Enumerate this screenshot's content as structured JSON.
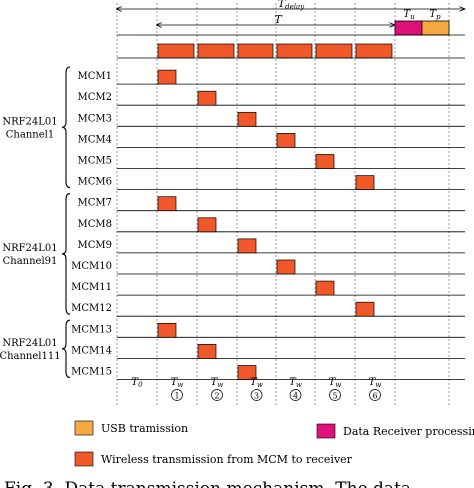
{
  "header": {
    "t_delay": "T_delay",
    "t_delay_main": "T",
    "t_delay_sub": "delay",
    "t_period": "T",
    "t_u_main": "T",
    "t_u_sub": "u",
    "t_p_main": "T",
    "t_p_sub": "p"
  },
  "groups": [
    {
      "line1": "NRF24L01",
      "line2": "Channel1",
      "rows": [
        {
          "label": "MCM1",
          "slot": 0
        },
        {
          "label": "MCM2",
          "slot": 1
        },
        {
          "label": "MCM3",
          "slot": 2
        },
        {
          "label": "MCM4",
          "slot": 3
        },
        {
          "label": "MCM5",
          "slot": 4
        },
        {
          "label": "MCM6",
          "slot": 5
        }
      ]
    },
    {
      "line1": "NRF24L01",
      "line2": "Channel91",
      "rows": [
        {
          "label": "MCM7",
          "slot": 0
        },
        {
          "label": "MCM8",
          "slot": 1
        },
        {
          "label": "MCM9",
          "slot": 2
        },
        {
          "label": "MCM10",
          "slot": 3
        },
        {
          "label": "MCM11",
          "slot": 4
        },
        {
          "label": "MCM12",
          "slot": 5
        }
      ]
    },
    {
      "line1": "NRF24L01",
      "line2": "Channel111",
      "rows": [
        {
          "label": "MCM13",
          "slot": 0
        },
        {
          "label": "MCM14",
          "slot": 1
        },
        {
          "label": "MCM15",
          "slot": 2
        }
      ]
    }
  ],
  "bottom": {
    "t0_main": "T",
    "t0_sub": "0",
    "tw_main": "T",
    "tw_sub": "w",
    "slot_numbers": [
      "1",
      "2",
      "3",
      "4",
      "5",
      "6"
    ]
  },
  "legend": {
    "usb": "USB tramission",
    "data_receiver": "Data Receiver processing",
    "wireless": "Wireless transmission from MCM to receiver"
  },
  "caption_fragment": "Fig. 3.  Data transmission mechanism. The data",
  "colors": {
    "wireless": "#f0582a",
    "usb": "#f6a941",
    "receiver": "#e0107a",
    "line": "#000000",
    "dashed": "#555555"
  }
}
